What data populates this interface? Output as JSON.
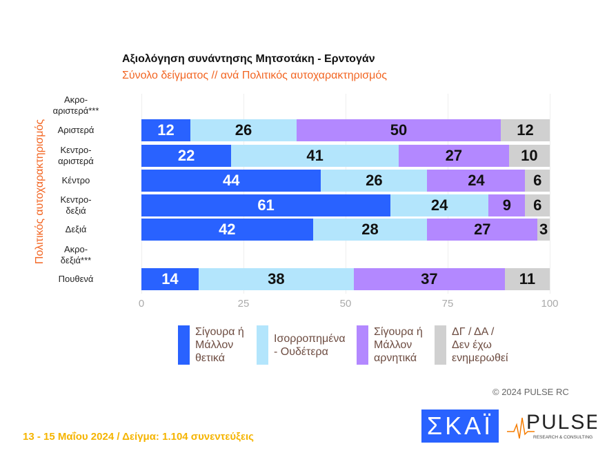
{
  "chart_data": {
    "type": "bar",
    "orientation": "horizontal",
    "stacked": true,
    "title": "Αξιολόγηση συνάντησης Μητσοτάκη - Ερντογάν",
    "subtitle": "Σύνολο δείγματος // ανά Πολιτικός αυτοχαρακτηρισμός",
    "ylabel": "Πολιτικός αυτοχαρακτηρισμός",
    "xlim": [
      0,
      100
    ],
    "xticks": [
      "0",
      "25",
      "50",
      "75",
      "100"
    ],
    "categories": [
      [
        "Ακρο-",
        "αριστερά***"
      ],
      [
        "Αριστερά"
      ],
      [
        "Κεντρο-",
        "αριστερά"
      ],
      [
        "Κέντρο"
      ],
      [
        "Κεντρο-",
        "δεξιά"
      ],
      [
        "Δεξιά"
      ],
      [
        "Ακρο-",
        "δεξιά***"
      ],
      [
        "Πουθενά"
      ]
    ],
    "series": [
      {
        "name": "Σίγουρα ή Μάλλον θετικά",
        "color": "#2962ff",
        "values": [
          null,
          12,
          22,
          44,
          61,
          42,
          null,
          14
        ]
      },
      {
        "name": "Ισορροπημένα - Ουδέτερα",
        "color": "#b3e5fc",
        "values": [
          null,
          26,
          41,
          26,
          24,
          28,
          null,
          38
        ]
      },
      {
        "name": "Σίγουρα ή Μάλλον αρνητικά",
        "color": "#b388ff",
        "values": [
          null,
          50,
          27,
          24,
          9,
          27,
          null,
          37
        ]
      },
      {
        "name": "ΔΓ / ΔΑ / Δεν έχω ενημερωθεί",
        "color": "#d0d0d0",
        "values": [
          null,
          12,
          10,
          6,
          6,
          3,
          null,
          11
        ]
      }
    ],
    "legend_position": "bottom"
  },
  "legend": [
    [
      "Σίγουρα ή",
      "Μάλλον",
      "θετικά"
    ],
    [
      "Ισορροπημένα",
      "- Ουδέτερα"
    ],
    [
      "Σίγουρα ή",
      "Μάλλον",
      "αρνητικά"
    ],
    [
      "ΔΓ / ΔΑ /",
      "Δεν έχω",
      "ενημερωθεί"
    ]
  ],
  "copyright": "© 2024 PULSE RC",
  "footer": "13 - 15  Μαΐου 2024  /  Δείγμα:  1.104 συνεντεύξεις",
  "logos": {
    "skai": "ΣΚΑΪ",
    "pulse": "PULSE",
    "pulse_sub": "RESEARCH & CONSULTING"
  }
}
